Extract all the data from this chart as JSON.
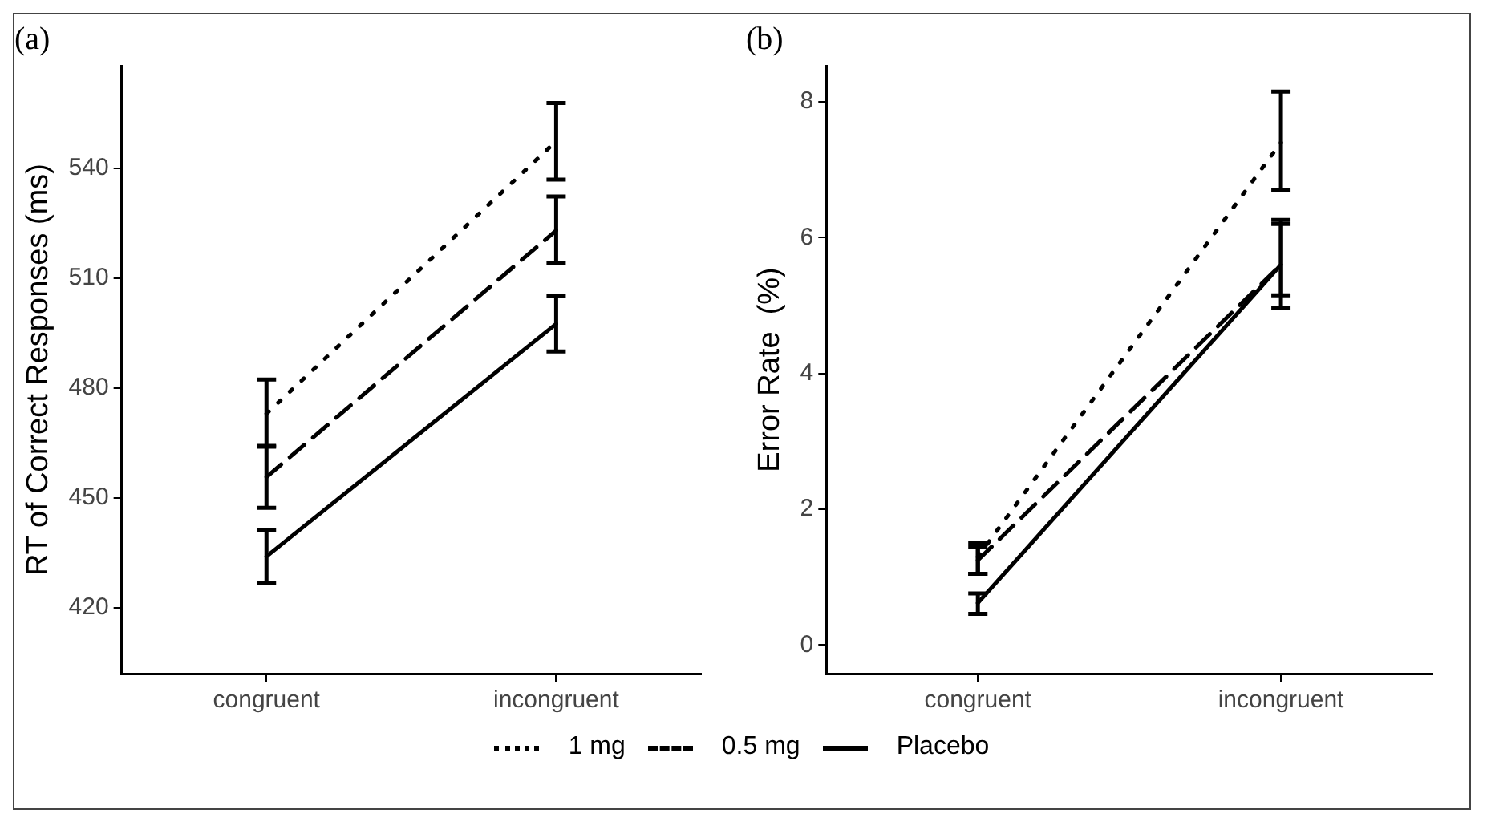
{
  "chart_data": [
    {
      "type": "line",
      "title": "(a)",
      "ylabel": "RT of Correct Responses (ms)",
      "categories": [
        "congruent",
        "incongruent"
      ],
      "ylim": [
        402,
        568
      ],
      "yticks": [
        420,
        450,
        480,
        510,
        540
      ],
      "grid": false,
      "legend": "bottom",
      "series": [
        {
          "name": "1 mg",
          "color": "#000000",
          "line_style": "dotted",
          "values": [
            473,
            547.4
          ],
          "errors": [
            [
              464.2,
              482.3
            ],
            [
              536.9,
              557.8
            ]
          ]
        },
        {
          "name": "0.5 mg",
          "color": "#000000",
          "line_style": "dashed",
          "values": [
            455.7,
            523
          ],
          "errors": [
            [
              447.3,
              464.0
            ],
            [
              514.2,
              532.3
            ]
          ]
        },
        {
          "name": "Placebo",
          "color": "#000000",
          "line_style": "solid",
          "values": [
            434,
            497.5
          ],
          "errors": [
            [
              426.8,
              441.1
            ],
            [
              490,
              505.1
            ]
          ]
        }
      ]
    },
    {
      "type": "line",
      "title": "(b)",
      "ylabel": "Error Rate  (%)",
      "categories": [
        "congruent",
        "incongruent"
      ],
      "ylim": [
        -0.42,
        8.53
      ],
      "yticks": [
        0,
        2,
        4,
        6,
        8
      ],
      "grid": false,
      "series": [
        {
          "color": "#000000",
          "line_style": "dotted",
          "values": [
            1.3,
            7.4
          ],
          "errors": [
            [
              1.05,
              1.5
            ],
            [
              6.7,
              8.15
            ]
          ]
        },
        {
          "color": "#000000",
          "line_style": "dashed",
          "values": [
            1.25,
            5.6
          ],
          "errors": [
            [
              1.05,
              1.45
            ],
            [
              4.96,
              6.26
            ]
          ]
        },
        {
          "color": "#000000",
          "line_style": "solid",
          "values": [
            0.62,
            5.6
          ],
          "errors": [
            [
              0.46,
              0.76
            ],
            [
              5.15,
              6.2
            ]
          ]
        }
      ]
    }
  ]
}
